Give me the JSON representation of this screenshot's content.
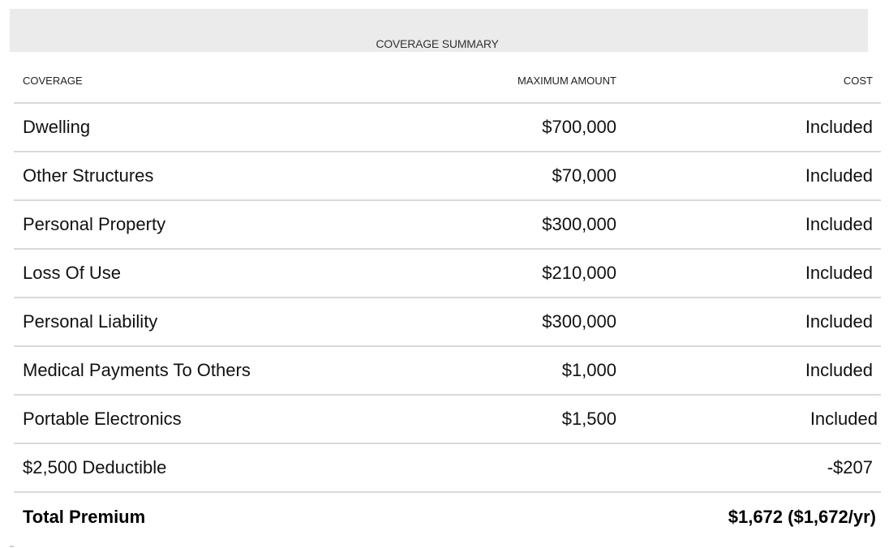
{
  "summary": {
    "title": "COVERAGE SUMMARY"
  },
  "table": {
    "headers": {
      "coverage": "COVERAGE",
      "maximum_amount": "MAXIMUM AMOUNT",
      "cost": "COST"
    },
    "rows": [
      {
        "coverage": "Dwelling",
        "maximum_amount": "$700,000",
        "cost": "Included"
      },
      {
        "coverage": "Other Structures",
        "maximum_amount": "$70,000",
        "cost": "Included"
      },
      {
        "coverage": "Personal Property",
        "maximum_amount": "$300,000",
        "cost": "Included"
      },
      {
        "coverage": "Loss Of Use",
        "maximum_amount": "$210,000",
        "cost": "Included"
      },
      {
        "coverage": "Personal Liability",
        "maximum_amount": "$300,000",
        "cost": "Included"
      },
      {
        "coverage": "Medical Payments To Others",
        "maximum_amount": "$1,000",
        "cost": "Included"
      },
      {
        "coverage": "Portable Electronics",
        "maximum_amount": "$1,500",
        "cost": "Included"
      },
      {
        "coverage": "$2,500 Deductible",
        "maximum_amount": "",
        "cost": "-$207"
      }
    ],
    "total": {
      "label": "Total Premium",
      "value": "$1,672 ($1,672/yr)"
    }
  },
  "colors": {
    "band_background": "#ebebeb",
    "divider": "#d9d9d9",
    "text": "#111111"
  }
}
